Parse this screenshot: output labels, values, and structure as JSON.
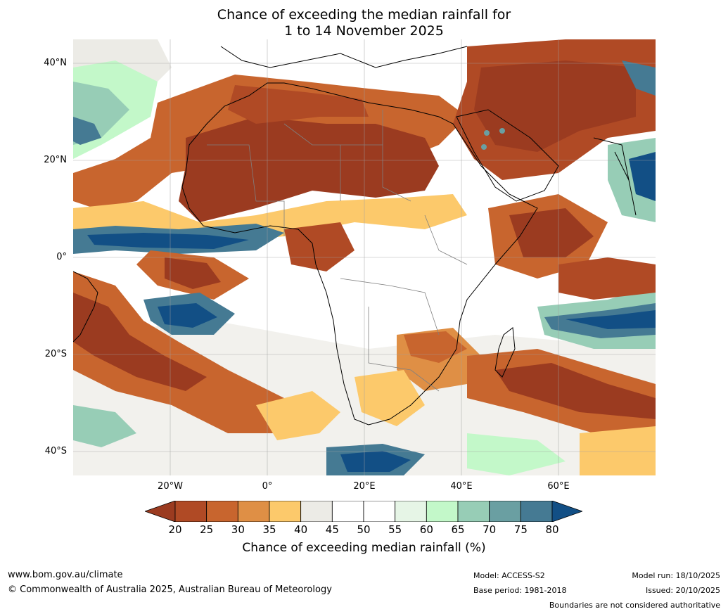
{
  "title": {
    "line1": "Chance of exceeding the median rainfall for",
    "line2": "1 to 14 November 2025"
  },
  "map": {
    "latitude_labels": [
      "40°N",
      "20°N",
      "0°",
      "20°S",
      "40°S"
    ],
    "longitude_labels": [
      "20°W",
      "0°",
      "20°E",
      "40°E",
      "60°E"
    ],
    "lat_values": [
      40,
      20,
      0,
      -20,
      -40
    ],
    "lon_values": [
      -20,
      0,
      20,
      40,
      60
    ],
    "extent": {
      "lon": [
        -40,
        80
      ],
      "lat": [
        -45,
        45
      ]
    }
  },
  "colorbar": {
    "ticks": [
      "20",
      "25",
      "30",
      "35",
      "40",
      "45",
      "50",
      "55",
      "60",
      "65",
      "70",
      "75",
      "80"
    ],
    "colors": [
      "#9b3b20",
      "#b04a25",
      "#c8652e",
      "#df8f45",
      "#fcc96b",
      "#ecebe6",
      "#ffffff",
      "#ffffff",
      "#e6f5e6",
      "#c3f8c9",
      "#97cdb6",
      "#6a9fa2",
      "#457a93",
      "#124f85"
    ],
    "label": "Chance of exceeding median rainfall (%)"
  },
  "footer": {
    "website": "www.bom.gov.au/climate",
    "copyright": "© Commonwealth of Australia 2025, Australian Bureau of Meteorology",
    "model": "Model: ACCESS-S2",
    "base_period": "Base period: 1981-2018",
    "model_run": "Model run: 18/10/2025",
    "issued": "Issued: 20/10/2025",
    "disclaimer": "Boundaries are not considered authoritative"
  }
}
